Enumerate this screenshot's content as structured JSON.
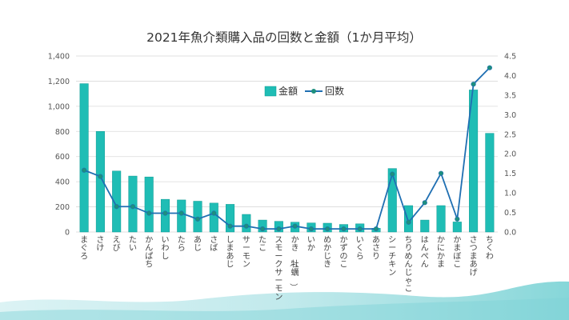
{
  "colors": {
    "bar": "#1fbdb5",
    "bar_edge": "#0e9a94",
    "line": "#1f6fb2",
    "marker": "#1e8f7e",
    "grid": "#d9d9d9",
    "wash": "#5ec9cc"
  },
  "chart_data": {
    "type": "bar",
    "title": "2021年魚介類購入品の回数と金額（1か月平均）",
    "categories": [
      "まぐろ",
      "さけ",
      "えび",
      "たい",
      "かんぱち",
      "いわし",
      "たら",
      "あじ",
      "さば",
      "しまあじ",
      "サーモン",
      "たこ",
      "スモークサーモン",
      "かき（牡蠣）",
      "いか",
      "めかじき",
      "かずのこ",
      "いくら",
      "あさり",
      "シーチキン",
      "ちりめんじゃこ",
      "はんぺん",
      "かにかま",
      "かまぼこ",
      "さつまあげ",
      "ちくわ"
    ],
    "series": [
      {
        "name": "金額",
        "type": "bar",
        "axis": "left",
        "values": [
          1180,
          800,
          485,
          445,
          438,
          260,
          255,
          245,
          230,
          220,
          140,
          95,
          85,
          78,
          72,
          70,
          60,
          65,
          30,
          505,
          210,
          95,
          210,
          80,
          1130,
          785
        ]
      },
      {
        "name": "回数",
        "type": "line",
        "axis": "right",
        "values": [
          1.58,
          1.42,
          0.65,
          0.65,
          0.48,
          0.48,
          0.48,
          0.33,
          0.48,
          0.15,
          0.15,
          0.08,
          0.08,
          0.15,
          0.08,
          0.08,
          0.08,
          0.08,
          0.08,
          1.48,
          0.25,
          0.75,
          1.5,
          0.33,
          3.78,
          4.2
        ]
      }
    ],
    "y_left": {
      "min": 0,
      "max": 1400,
      "ticks": [
        "0",
        "200",
        "400",
        "600",
        "800",
        "1,000",
        "1,200",
        "1,400"
      ]
    },
    "y_right": {
      "min": 0,
      "max": 4.5,
      "ticks": [
        "0.0",
        "0.5",
        "1.0",
        "1.5",
        "2.0",
        "2.5",
        "3.0",
        "3.5",
        "4.0",
        "4.5"
      ]
    },
    "grid": true,
    "legend_position": "top-center"
  }
}
